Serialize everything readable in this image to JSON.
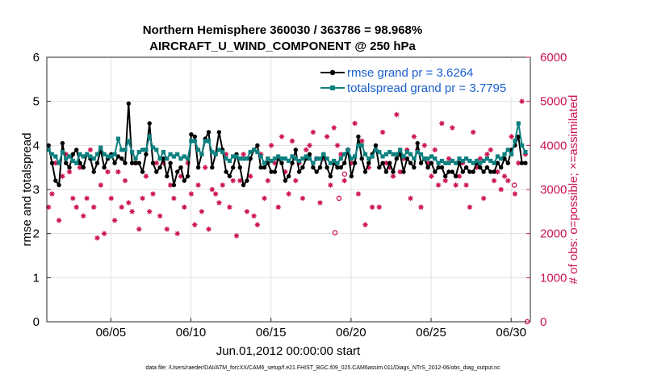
{
  "chart_data": {
    "type": "line",
    "title_line1": "Northern Hemisphere 360030 / 363786 = 98.968%",
    "title_line2": "AIRCRAFT_U_WIND_COMPONENT @ 250 hPa",
    "xlabel": "Jun.01,2012 00:00:00 start",
    "ylabel_left": "rmse and totalspread",
    "ylabel_right": "# of obs: o=possible; ×=assimilated",
    "footnote": "data file: /Users/raeder/DAI/ATM_forcXX/CAM6_setup/f.e21.FHIST_BGC.f09_025.CAM6assim.011/Diags_NTrS_2012-06/obs_diag_output.nc",
    "xlim": [
      1.0,
      31.2
    ],
    "ylim_left": [
      0,
      6
    ],
    "ylim_right": [
      0,
      6000
    ],
    "x_ticks": [
      5,
      10,
      15,
      20,
      25,
      30
    ],
    "x_tick_labels": [
      "06/05",
      "06/10",
      "06/15",
      "06/20",
      "06/25",
      "06/30"
    ],
    "y_left_ticks": [
      "0",
      "1",
      "2",
      "3",
      "4",
      "5",
      "6"
    ],
    "y_right_ticks": [
      "0",
      "1000",
      "2000",
      "3000",
      "4000",
      "5000",
      "6000"
    ],
    "colors": {
      "rmse": "#000000",
      "spread": "#0e8080",
      "obs": "#cc1450",
      "legend_text": "#1a5fd1",
      "grid": "#e0e0e0"
    },
    "series": [
      {
        "name": "rmse grand pr = 3.6264",
        "values": [
          4.0,
          3.6,
          3.2,
          3.1,
          4.05,
          3.6,
          3.5,
          3.8,
          3.9,
          3.6,
          3.5,
          3.8,
          3.7,
          3.4,
          3.6,
          3.9,
          3.5,
          3.7,
          3.8,
          3.6,
          3.75,
          3.7,
          3.6,
          4.95,
          3.6,
          3.6,
          3.6,
          3.4,
          3.8,
          4.5,
          3.6,
          3.4,
          3.5,
          3.7,
          3.3,
          3.6,
          3.1,
          3.4,
          3.5,
          3.2,
          3.3,
          4.25,
          4.2,
          3.5,
          3.8,
          4.15,
          4.3,
          3.5,
          3.8,
          4.3,
          3.9,
          3.4,
          3.3,
          3.5,
          3.8,
          3.5,
          3.1,
          3.2,
          3.7,
          3.9,
          4.0,
          3.5,
          3.5,
          3.6,
          3.4,
          3.4,
          3.7,
          3.6,
          3.2,
          3.3,
          3.6,
          3.9,
          3.4,
          3.5,
          3.7,
          3.8,
          3.5,
          3.4,
          3.5,
          3.8,
          3.5,
          3.3,
          3.6,
          3.5,
          3.5,
          3.6,
          3.9,
          3.3,
          3.6,
          4.2,
          3.7,
          3.4,
          3.6,
          3.8,
          4.0,
          3.5,
          3.6,
          3.4,
          3.6,
          3.4,
          3.7,
          3.8,
          3.4,
          3.7,
          3.6,
          3.5,
          4.05,
          3.6,
          3.7,
          3.5,
          3.6,
          3.4,
          3.5,
          3.5,
          3.3,
          3.4,
          3.4,
          3.3,
          3.6,
          3.4,
          3.5,
          3.4,
          3.4,
          3.6,
          3.5,
          3.4,
          3.5,
          3.4,
          3.4,
          3.6,
          3.5,
          3.7,
          3.6,
          3.9,
          4.0,
          4.2,
          3.6,
          3.6
        ]
      },
      {
        "name": "totalspread grand pr = 3.7795",
        "values": [
          3.9,
          3.8,
          3.75,
          3.6,
          3.85,
          3.7,
          3.75,
          3.65,
          3.6,
          3.8,
          3.75,
          3.8,
          3.75,
          3.7,
          3.8,
          3.95,
          3.8,
          3.75,
          3.75,
          3.8,
          4.15,
          3.9,
          3.9,
          4.1,
          3.85,
          3.7,
          3.85,
          3.9,
          3.9,
          4.2,
          3.95,
          3.9,
          3.7,
          3.85,
          3.7,
          3.8,
          3.75,
          3.8,
          3.7,
          3.75,
          3.7,
          4.1,
          4.1,
          3.9,
          3.8,
          4.1,
          4.1,
          3.85,
          3.8,
          3.9,
          3.85,
          3.7,
          3.65,
          3.75,
          3.75,
          3.7,
          3.7,
          3.7,
          3.85,
          3.9,
          3.85,
          3.75,
          3.6,
          3.7,
          3.65,
          3.7,
          3.75,
          3.7,
          3.7,
          3.65,
          3.75,
          3.7,
          3.65,
          3.7,
          3.75,
          3.7,
          3.6,
          3.7,
          3.7,
          3.8,
          3.7,
          3.6,
          3.65,
          3.6,
          3.7,
          3.8,
          3.9,
          3.7,
          3.75,
          4.0,
          4.0,
          3.8,
          3.7,
          3.75,
          3.9,
          3.85,
          3.75,
          3.8,
          3.85,
          3.8,
          3.8,
          3.9,
          3.75,
          3.85,
          3.8,
          3.7,
          3.85,
          3.8,
          3.7,
          3.7,
          3.75,
          3.7,
          3.6,
          3.65,
          3.6,
          3.6,
          3.65,
          3.6,
          3.7,
          3.65,
          3.7,
          3.65,
          3.6,
          3.65,
          3.6,
          3.65,
          3.7,
          3.65,
          3.6,
          3.75,
          3.7,
          3.8,
          3.9,
          3.8,
          4.1,
          4.5,
          4.0,
          3.85
        ]
      },
      {
        "name": "number of observations (possible / assimilated)",
        "values": [
          2600,
          2900,
          3600,
          2300,
          3300,
          3800,
          3400,
          2800,
          2600,
          3500,
          2400,
          2800,
          3900,
          2600,
          1900,
          3100,
          2000,
          3400,
          2800,
          2300,
          3400,
          2600,
          3200,
          2700,
          2500,
          3600,
          2100,
          2800,
          3300,
          2500,
          2900,
          3600,
          2400,
          3600,
          2100,
          3100,
          2800,
          2000,
          3300,
          2600,
          3600,
          2900,
          2200,
          3100,
          2500,
          3500,
          2100,
          3000,
          2900,
          2700,
          3100,
          3800,
          2600,
          3200,
          1950,
          3200,
          3800,
          2500,
          3300,
          2400,
          2200,
          3800,
          2800,
          3200,
          4000,
          3600,
          2600,
          4200,
          3400,
          2900,
          4100,
          3200,
          3600,
          2800,
          3900,
          4000,
          4300,
          3700,
          2700,
          3700,
          4200,
          3100,
          4400,
          4000,
          3800,
          3200,
          3900,
          3600,
          4500,
          2900,
          4100,
          2200,
          3500,
          2600,
          3900,
          2600,
          4300,
          3600,
          3500,
          3300,
          4700,
          3400,
          3700,
          3900,
          2800,
          4200,
          3900,
          2600,
          4000,
          3600,
          3300,
          3900,
          3100,
          4500,
          3200,
          3700,
          4400,
          3100,
          3300,
          3600,
          3100,
          2600,
          4300,
          3500,
          3700,
          2800,
          3800,
          3900,
          3200,
          3400,
          3000,
          3300,
          3200,
          4200,
          2900,
          3600,
          5000,
          3800
        ]
      }
    ],
    "possible_markers": [
      {
        "x": 19.0,
        "y": 2020
      },
      {
        "x": 19.25,
        "y": 2800
      },
      {
        "x": 19.6,
        "y": 3350
      },
      {
        "x": 30.2,
        "y": 3100
      },
      {
        "x": 31.0,
        "y": 0
      }
    ],
    "legend": {
      "placement": "top-right",
      "entries": [
        "rmse grand pr = 3.6264",
        "totalspread grand pr = 3.7795"
      ]
    }
  }
}
